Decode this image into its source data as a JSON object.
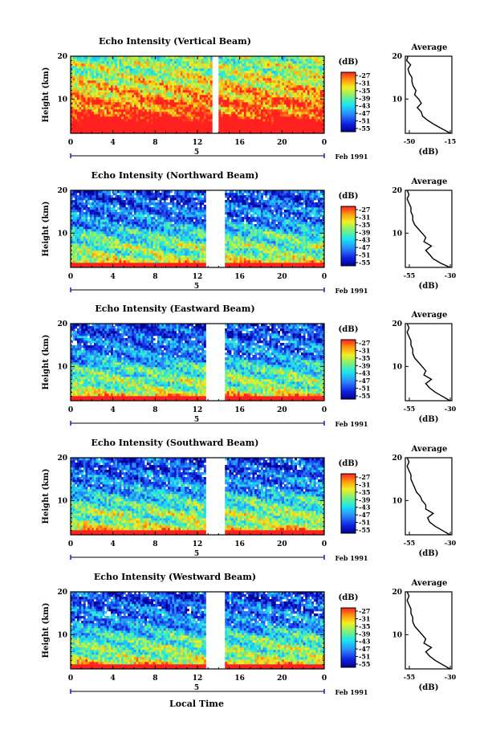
{
  "figure": {
    "xlabel": "Local Time",
    "date_label": "Feb 1991",
    "colorbar_title": "(dB)",
    "colorbar_ticks": [
      "-27",
      "-31",
      "-35",
      "-39",
      "-43",
      "-47",
      "-51",
      "-55"
    ],
    "x_ticks": [
      "0",
      "4",
      "8",
      "12",
      "16",
      "20",
      "0"
    ],
    "y_ticks": [
      "20",
      "10"
    ],
    "day_marker": "5",
    "ylabel": "Height (km)",
    "avg_title": "Average",
    "avg_xlabel": "(dB)"
  },
  "chart_data": [
    {
      "type": "heatmap",
      "title": "Echo Intensity (Vertical Beam)",
      "ylabel": "Height (km)",
      "x": [
        0,
        24
      ],
      "y": [
        2,
        20
      ],
      "clim": [
        -55,
        -27
      ],
      "gap": [
        13.4,
        14.0
      ],
      "avg": {
        "type": "line",
        "title": "Average",
        "xlabel": "(dB)",
        "xlim": [
          -50,
          -15
        ],
        "x_ticks": [
          "-50",
          "-15"
        ],
        "ylim": [
          2,
          20
        ],
        "heights": [
          2,
          3,
          4,
          5,
          6,
          7,
          8,
          9,
          10,
          11,
          12,
          13,
          14,
          15,
          16,
          17,
          18,
          19,
          20
        ],
        "values": [
          -16,
          -22,
          -28,
          -33,
          -37,
          -38,
          -41,
          -38,
          -40,
          -43,
          -42,
          -44,
          -45,
          -45,
          -47,
          -48,
          -46,
          -49,
          -48
        ]
      }
    },
    {
      "type": "heatmap",
      "title": "Echo Intensity (Northward Beam)",
      "ylabel": "Height (km)",
      "x": [
        0,
        24
      ],
      "y": [
        2,
        20
      ],
      "clim": [
        -55,
        -27
      ],
      "gap": [
        12.8,
        14.6
      ],
      "avg": {
        "type": "line",
        "title": "Average",
        "xlabel": "(dB)",
        "xlim": [
          -55,
          -30
        ],
        "x_ticks": [
          "-55",
          "-30"
        ],
        "ylim": [
          2,
          20
        ],
        "heights": [
          2,
          3,
          4,
          5,
          6,
          7,
          8,
          9,
          10,
          11,
          12,
          13,
          14,
          15,
          16,
          17,
          18,
          19,
          20
        ],
        "values": [
          -31,
          -36,
          -40,
          -42,
          -44,
          -41,
          -45,
          -44,
          -46,
          -48,
          -50,
          -51,
          -51,
          -52,
          -52,
          -53,
          -54,
          -53,
          -54
        ]
      }
    },
    {
      "type": "heatmap",
      "title": "Echo Intensity (Eastward Beam)",
      "ylabel": "Height (km)",
      "x": [
        0,
        24
      ],
      "y": [
        2,
        20
      ],
      "clim": [
        -55,
        -27
      ],
      "gap": [
        12.8,
        14.6
      ],
      "avg": {
        "type": "line",
        "title": "Average",
        "xlabel": "(dB)",
        "xlim": [
          -55,
          -30
        ],
        "x_ticks": [
          "-55",
          "-30"
        ],
        "ylim": [
          2,
          20
        ],
        "heights": [
          2,
          3,
          4,
          5,
          6,
          7,
          8,
          9,
          10,
          11,
          12,
          13,
          14,
          15,
          16,
          17,
          18,
          19,
          20
        ],
        "values": [
          -31,
          -35,
          -39,
          -42,
          -44,
          -41,
          -45,
          -44,
          -46,
          -48,
          -50,
          -51,
          -51,
          -52,
          -52,
          -53,
          -54,
          -53,
          -54
        ]
      }
    },
    {
      "type": "heatmap",
      "title": "Echo Intensity (Southward Beam)",
      "ylabel": "Height (km)",
      "x": [
        0,
        24
      ],
      "y": [
        2,
        20
      ],
      "clim": [
        -55,
        -27
      ],
      "gap": [
        12.8,
        14.6
      ],
      "avg": {
        "type": "line",
        "title": "Average",
        "xlabel": "(dB)",
        "xlim": [
          -55,
          -30
        ],
        "x_ticks": [
          "-55",
          "-30"
        ],
        "ylim": [
          2,
          20
        ],
        "heights": [
          2,
          3,
          4,
          5,
          6,
          7,
          8,
          9,
          10,
          11,
          12,
          13,
          14,
          15,
          16,
          17,
          18,
          19,
          20
        ],
        "values": [
          -31,
          -35,
          -39,
          -42,
          -43,
          -40,
          -44,
          -44,
          -46,
          -47,
          -49,
          -50,
          -51,
          -52,
          -52,
          -53,
          -54,
          -53,
          -54
        ]
      }
    },
    {
      "type": "heatmap",
      "title": "Echo Intensity (Westward Beam)",
      "ylabel": "Height (km)",
      "x": [
        0,
        24
      ],
      "y": [
        2,
        20
      ],
      "clim": [
        -55,
        -27
      ],
      "gap": [
        12.8,
        14.6
      ],
      "avg": {
        "type": "line",
        "title": "Average",
        "xlabel": "(dB)",
        "xlim": [
          -55,
          -30
        ],
        "x_ticks": [
          "-55",
          "-30"
        ],
        "ylim": [
          2,
          20
        ],
        "heights": [
          2,
          3,
          4,
          5,
          6,
          7,
          8,
          9,
          10,
          11,
          12,
          13,
          14,
          15,
          16,
          17,
          18,
          19,
          20
        ],
        "values": [
          -31,
          -35,
          -39,
          -42,
          -44,
          -41,
          -45,
          -44,
          -46,
          -48,
          -50,
          -51,
          -51,
          -52,
          -52,
          -53,
          -54,
          -53,
          -54
        ]
      }
    }
  ]
}
